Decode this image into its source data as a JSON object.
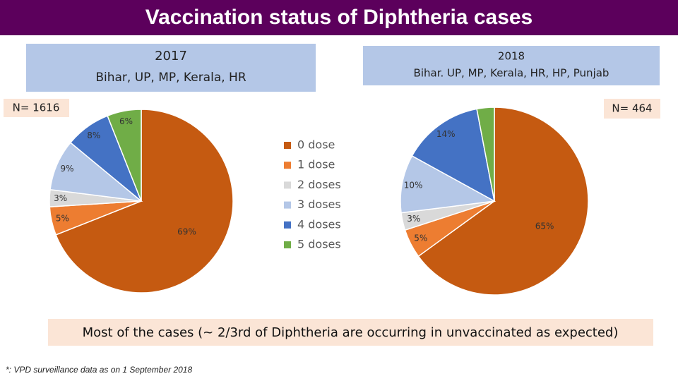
{
  "header": "Vaccination status of Diphtheria cases",
  "legend": {
    "categories": [
      "0 dose",
      "1 dose",
      "2 doses",
      "3 doses",
      "4 doses",
      "5 doses"
    ],
    "colors": [
      "#c55a11",
      "#ed7d31",
      "#d9d9d9",
      "#b4c7e7",
      "#4472c4",
      "#70ad47"
    ]
  },
  "chart_data": [
    {
      "type": "pie",
      "title": "2017",
      "subtitle": "Bihar, UP, MP, Kerala, HR",
      "annotation": "N= 1616",
      "values": [
        69,
        5,
        3,
        9,
        8,
        6
      ],
      "value_labels": [
        "69%",
        "5%",
        "3%",
        "9%",
        "8%",
        "6%"
      ]
    },
    {
      "type": "pie",
      "title": "2018",
      "subtitle": "Bihar. UP, MP, Kerala, HR, HP, Punjab",
      "annotation": "N= 464",
      "values": [
        65,
        5,
        3,
        10,
        14,
        3
      ],
      "value_labels": [
        "65%",
        "5%",
        "3%",
        "10%",
        "14%",
        null
      ]
    }
  ],
  "note": "Most of the cases (~ 2/3rd of Diphtheria are occurring in unvaccinated as expected)",
  "footnote": "*: VPD surveillance data as on 1 September 2018"
}
